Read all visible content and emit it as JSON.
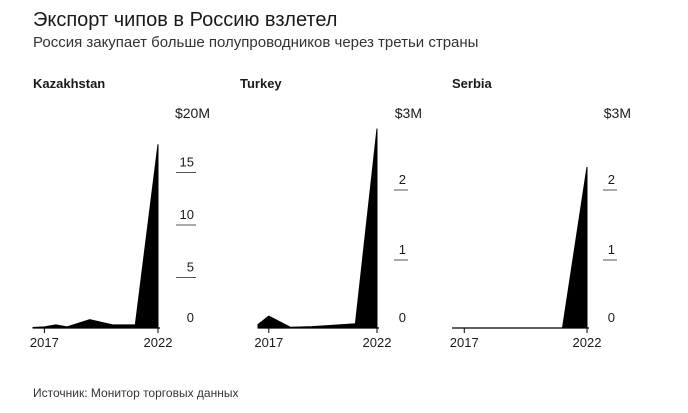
{
  "header": {
    "title": "Экспорт чипов в Россию взлетел",
    "subtitle": "Россия закупает больше полупроводников через третьи страны"
  },
  "footer": {
    "source": "Источник: Монитор торговых данных"
  },
  "colors": {
    "fill": "#000000",
    "text": "#1a1a1a",
    "axis": "#000000",
    "tick": "#555555"
  },
  "chart_data": [
    {
      "type": "area",
      "title": "Kazakhstan",
      "x": [
        2016.5,
        2017,
        2017.5,
        2018,
        2019,
        2020,
        2021,
        2022
      ],
      "values": [
        0.05,
        0.1,
        0.3,
        0.1,
        0.8,
        0.3,
        0.3,
        17.5
      ],
      "ylim": [
        0,
        20
      ],
      "yticks": [
        0,
        5,
        10,
        15
      ],
      "ytick_labels": [
        "0",
        "5",
        "10",
        "15"
      ],
      "unit_label": "$20M",
      "xticks": [
        2017,
        2022
      ],
      "xtick_labels": [
        "2017",
        "2022"
      ],
      "xlim": [
        2016.5,
        2022
      ]
    },
    {
      "type": "area",
      "title": "Turkey",
      "x": [
        2016.5,
        2017,
        2018,
        2019,
        2020,
        2021,
        2022
      ],
      "values": [
        0.05,
        0.17,
        0.01,
        0.02,
        0.04,
        0.06,
        2.85
      ],
      "ylim": [
        0,
        3
      ],
      "yticks": [
        0,
        1,
        2
      ],
      "ytick_labels": [
        "0",
        "1",
        "2"
      ],
      "unit_label": "$3M",
      "xticks": [
        2017,
        2022
      ],
      "xtick_labels": [
        "2017",
        "2022"
      ],
      "xlim": [
        2016.5,
        2022
      ]
    },
    {
      "type": "area",
      "title": "Serbia",
      "x": [
        2016.5,
        2017,
        2018,
        2019,
        2020,
        2021,
        2022
      ],
      "values": [
        0,
        0,
        0,
        0,
        0,
        0,
        2.3
      ],
      "ylim": [
        0,
        3
      ],
      "yticks": [
        0,
        1,
        2
      ],
      "ytick_labels": [
        "0",
        "1",
        "2"
      ],
      "unit_label": "$3M",
      "xticks": [
        2017,
        2022
      ],
      "xtick_labels": [
        "2017",
        "2022"
      ],
      "xlim": [
        2016.5,
        2022
      ]
    }
  ]
}
